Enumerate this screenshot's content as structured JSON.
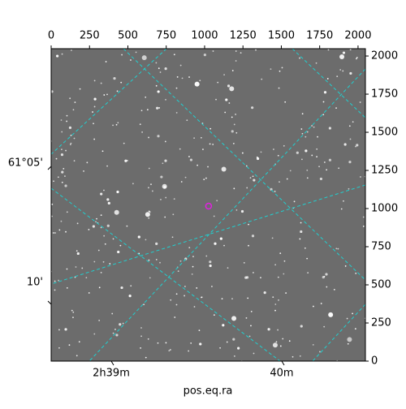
{
  "chart_data": {
    "type": "image",
    "xlabel": "pos.eq.ra",
    "xlim": [
      0,
      2048
    ],
    "ylim": [
      0,
      2048
    ],
    "xticks": [
      0,
      250,
      500,
      750,
      1000,
      1250,
      1500,
      1750,
      2000
    ],
    "yticks": [
      0,
      250,
      500,
      750,
      1000,
      1250,
      1500,
      1750,
      2000
    ],
    "world_xticks": [
      "2h39m",
      "40m"
    ],
    "world_yticks": [
      "61°05'",
      "10'"
    ],
    "marker": {
      "x": 1026,
      "y": 1016,
      "color": "#e020e0"
    },
    "grid_color": "#20d0d0"
  }
}
